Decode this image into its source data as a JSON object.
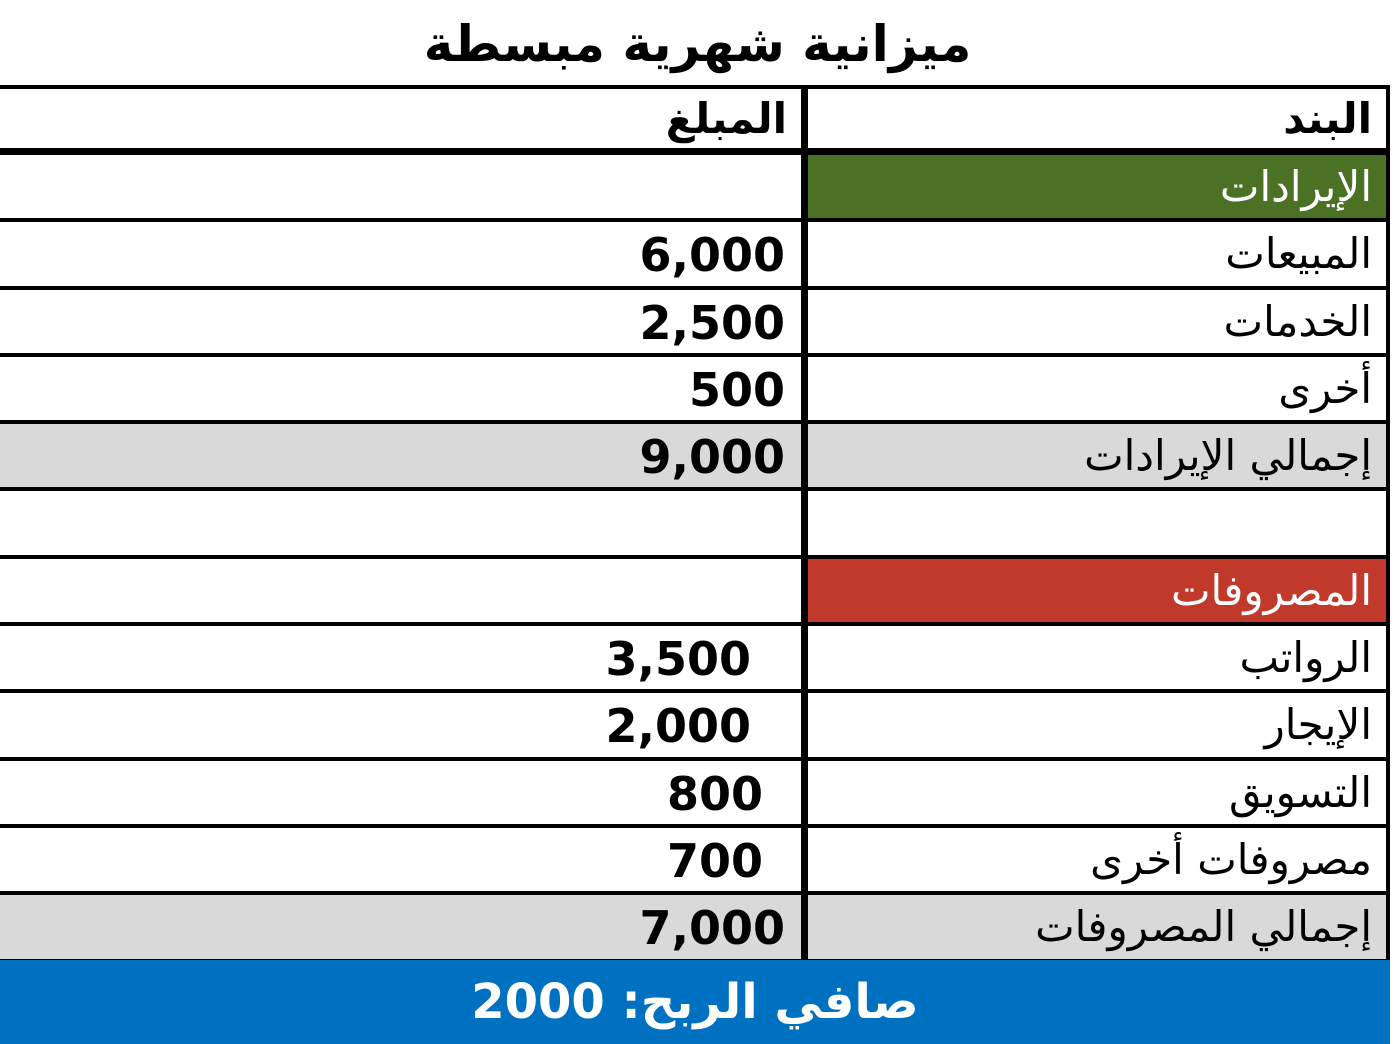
{
  "title": "ميزانية شهرية مبسطة",
  "headers": {
    "item": "البند",
    "amount": "المبلغ"
  },
  "rows": [
    {
      "item": "الإيرادات",
      "amount": "",
      "type": "green"
    },
    {
      "item": "المبيعات",
      "amount": "6,000",
      "type": ""
    },
    {
      "item": "الخدمات",
      "amount": "2,500",
      "type": ""
    },
    {
      "item": "أخرى",
      "amount": "500",
      "type": ""
    },
    {
      "item": "إجمالي الإيرادات",
      "amount": "9,000",
      "type": "total"
    },
    {
      "item": "",
      "amount": "",
      "type": ""
    },
    {
      "item": "المصروفات",
      "amount": "",
      "type": "red"
    },
    {
      "item": "الرواتب",
      "amount": "3,500",
      "type": "",
      "pad": 50
    },
    {
      "item": "الإيجار",
      "amount": "2,000",
      "type": "",
      "pad": 50
    },
    {
      "item": "التسويق",
      "amount": "800",
      "type": "",
      "pad": 38
    },
    {
      "item": "مصروفات أخرى",
      "amount": "700",
      "type": "",
      "pad": 38
    },
    {
      "item": "إجمالي المصروفات",
      "amount": "7,000",
      "type": "total"
    }
  ],
  "footer": {
    "net_profit": "صافي الربح: 2000"
  },
  "colors": {
    "revenue_header": "#4a7124",
    "expense_header": "#c0392b",
    "total_row": "#d9d9d9",
    "footer": "#0070c0"
  }
}
